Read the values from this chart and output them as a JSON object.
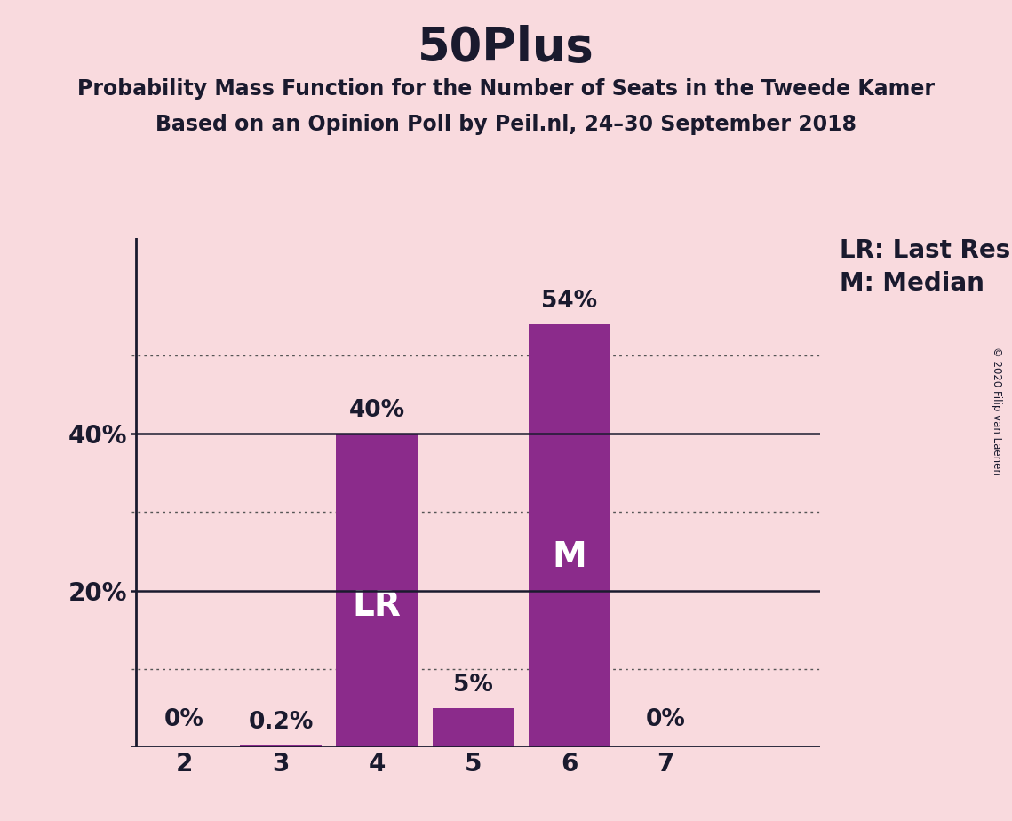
{
  "title": "50Plus",
  "subtitle1": "Probability Mass Function for the Number of Seats in the Tweede Kamer",
  "subtitle2": "Based on an Opinion Poll by Peil.nl, 24–30 September 2018",
  "categories": [
    2,
    3,
    4,
    5,
    6,
    7
  ],
  "values": [
    0.0,
    0.2,
    40.0,
    5.0,
    54.0,
    0.0
  ],
  "bar_color": "#8B2B8B",
  "background_color": "#F9DADE",
  "label_above": [
    "0%",
    "0.2%",
    "40%",
    "5%",
    "54%",
    "0%"
  ],
  "legend_lr": "LR: Last Result",
  "legend_m": "M: Median",
  "solid_lines": [
    20,
    40
  ],
  "dotted_lines": [
    10,
    30,
    50
  ],
  "ytick_positions": [
    20,
    40
  ],
  "ytick_labels": [
    "20%",
    "40%"
  ],
  "ylim": [
    0,
    65
  ],
  "xlim_left": 1.45,
  "xlim_right": 8.6,
  "copyright": "© 2020 Filip van Laenen",
  "title_fontsize": 38,
  "subtitle_fontsize": 17,
  "label_fontsize": 19,
  "bar_label_fontsize": 28,
  "legend_fontsize": 20,
  "axis_tick_fontsize": 20
}
